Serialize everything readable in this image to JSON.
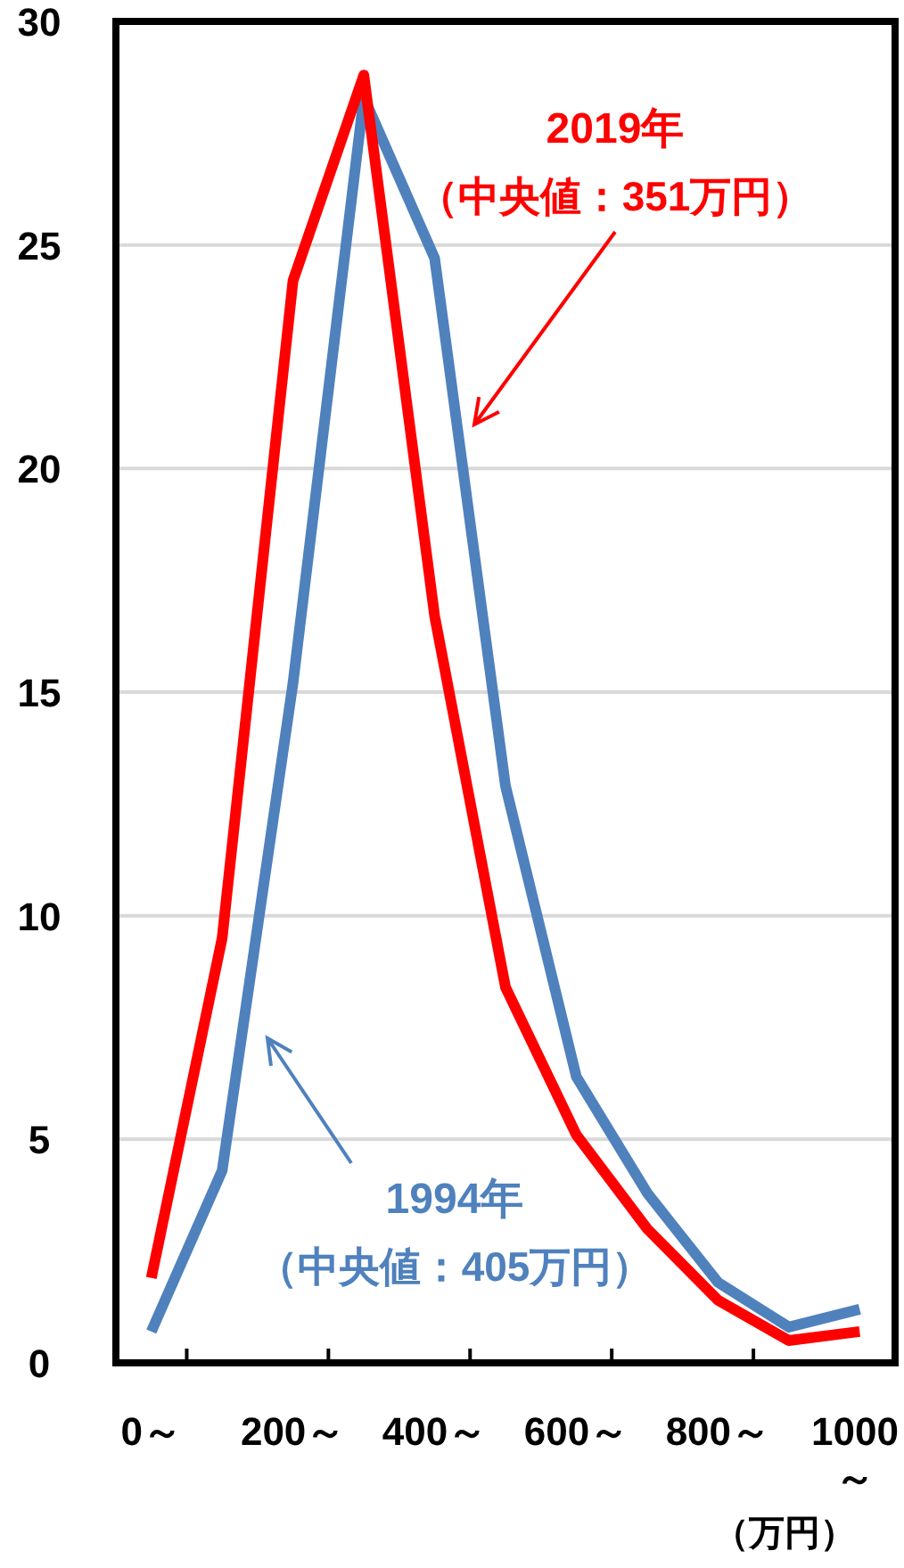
{
  "chart_data": {
    "type": "line",
    "categories": [
      "0～",
      null,
      "200～",
      null,
      "400～",
      null,
      "600～",
      null,
      "800～",
      null,
      "1000～"
    ],
    "series": [
      {
        "name": "2019年",
        "color": "#ff0000",
        "values": [
          1.9,
          9.5,
          24.2,
          28.8,
          16.7,
          8.4,
          5.1,
          3.0,
          1.4,
          0.5,
          0.7
        ]
      },
      {
        "name": "1994年",
        "color": "#4f81bd",
        "values": [
          0.7,
          4.3,
          15.2,
          28.3,
          24.7,
          12.9,
          6.4,
          3.8,
          1.8,
          0.8,
          1.2
        ]
      }
    ],
    "xlabel": "（万円）",
    "annotations": [
      "（中央値：351万円）",
      "（中央値：405万円）"
    ],
    "ylim": [
      0,
      30
    ],
    "yticks": [
      0,
      5,
      10,
      15,
      20,
      25,
      30
    ],
    "grid": "y",
    "legend": false,
    "marker": "none",
    "line_style": "solid"
  }
}
